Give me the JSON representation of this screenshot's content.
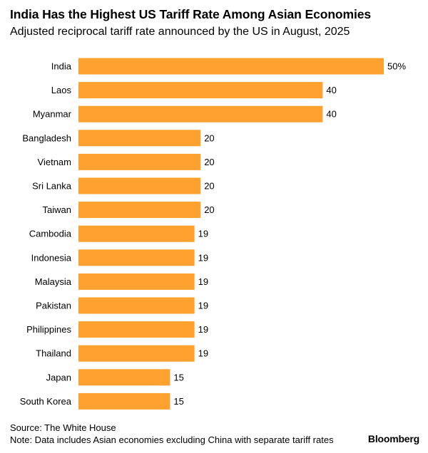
{
  "header": {
    "title": "India Has the Highest US Tariff Rate Among Asian Economies",
    "subtitle": "Adjusted reciprocal tariff rate announced by the US in August, 2025"
  },
  "chart_data": {
    "type": "bar",
    "orientation": "horizontal",
    "categories": [
      "India",
      "Laos",
      "Myanmar",
      "Bangladesh",
      "Vietnam",
      "Sri Lanka",
      "Taiwan",
      "Cambodia",
      "Indonesia",
      "Malaysia",
      "Pakistan",
      "Philippines",
      "Thailand",
      "Japan",
      "South Korea"
    ],
    "values": [
      50,
      40,
      40,
      20,
      20,
      20,
      20,
      19,
      19,
      19,
      19,
      19,
      19,
      15,
      15
    ],
    "value_labels": [
      "50%",
      "40",
      "40",
      "20",
      "20",
      "20",
      "20",
      "19",
      "19",
      "19",
      "19",
      "19",
      "19",
      "15",
      "15"
    ],
    "xlim": [
      0,
      50
    ],
    "grid": false,
    "bar_color": "#FFA12E"
  },
  "footer": {
    "source": "Source: The White House",
    "note": "Note: Data includes Asian economies excluding China with separate tariff rates",
    "brand": "Bloomberg"
  }
}
